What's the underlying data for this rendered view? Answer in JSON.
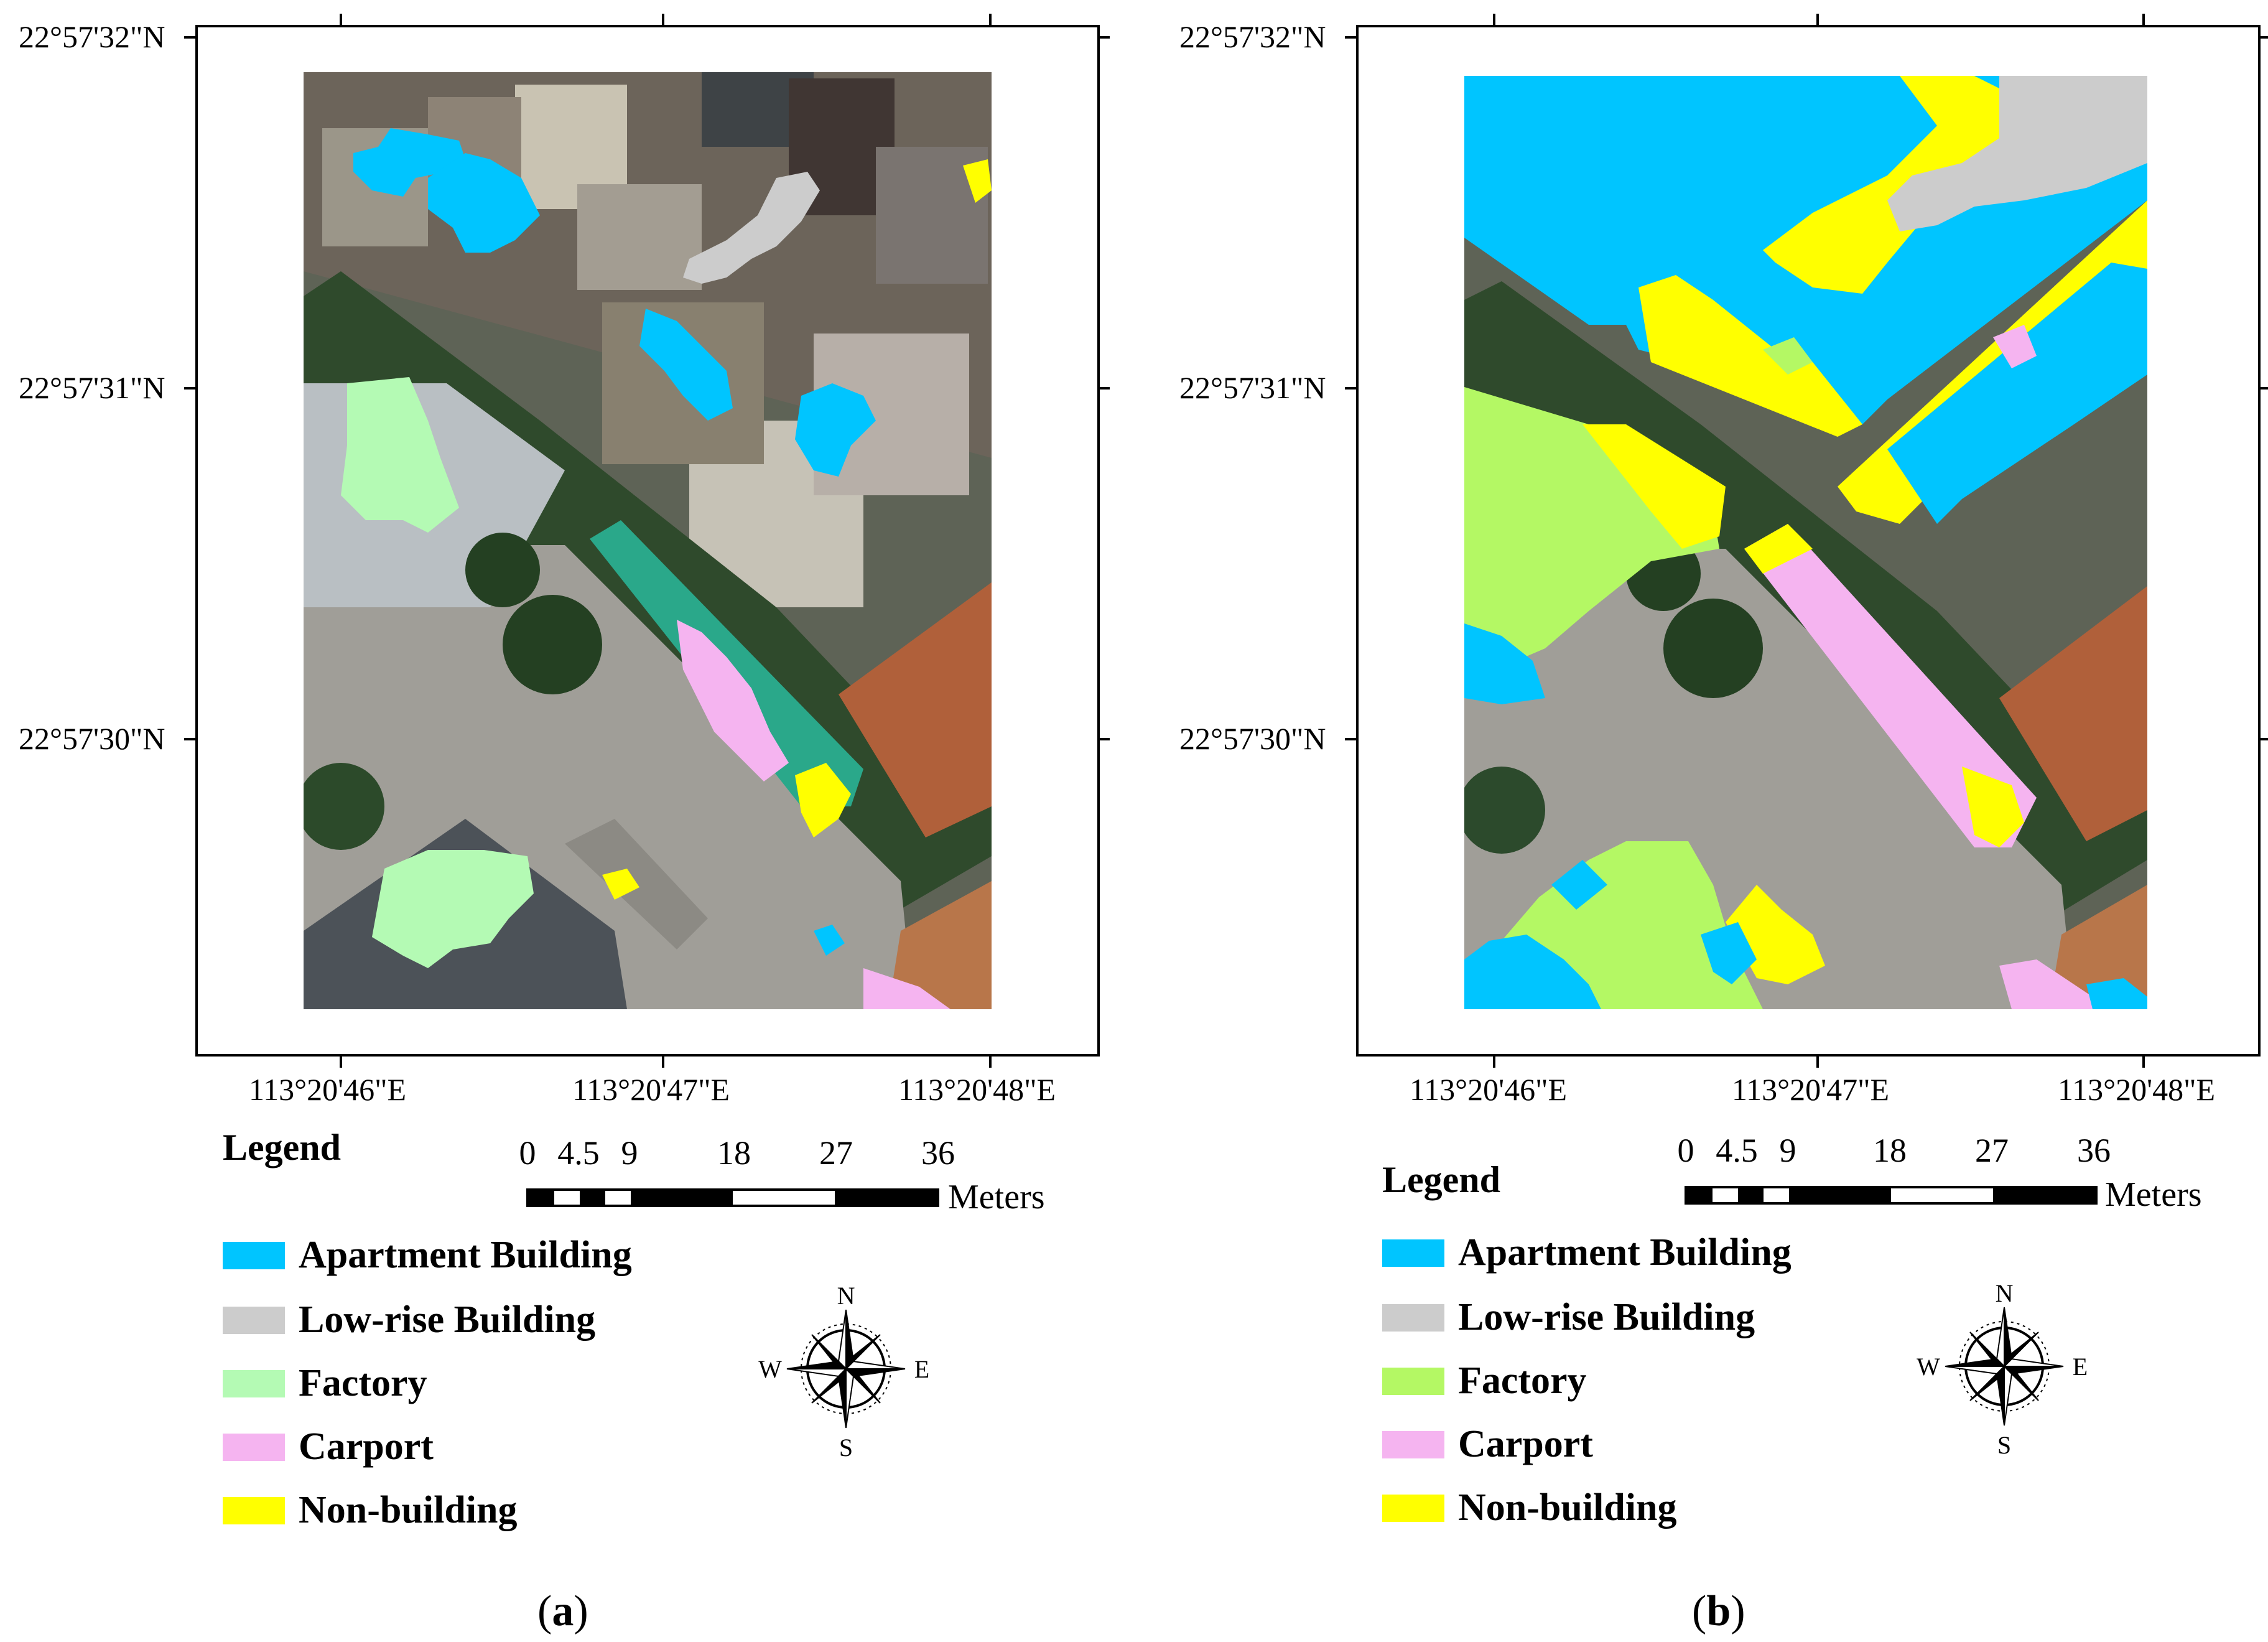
{
  "colors": {
    "apartment": "#00c5ff",
    "lowrise": "#cccccc",
    "factory_a": "#b4fab4",
    "factory_b": "#b4f864",
    "carport": "#f5b4f0",
    "nonbuilding": "#ffff00"
  },
  "coords": {
    "lat": [
      "22°57'32\"N",
      "22°57'31\"N",
      "22°57'30\"N"
    ],
    "lon": [
      "113°20'46\"E",
      "113°20'47\"E",
      "113°20'48\"E"
    ]
  },
  "legend": {
    "title": "Legend",
    "items": [
      {
        "label": "Apartment Building",
        "color": "apartment"
      },
      {
        "label": "Low-rise Building",
        "color": "lowrise"
      },
      {
        "label": "Factory",
        "color": "factory"
      },
      {
        "label": "Carport",
        "color": "carport"
      },
      {
        "label": "Non-building",
        "color": "nonbuilding"
      }
    ]
  },
  "scale": {
    "labels": [
      "0",
      "4.5",
      "9",
      "18",
      "27",
      "36"
    ],
    "unit": "Meters"
  },
  "compass": {
    "n": "N",
    "s": "S",
    "e": "E",
    "w": "W"
  },
  "panels": {
    "a": {
      "caption_letter": "a"
    },
    "b": {
      "caption_letter": "b"
    }
  }
}
